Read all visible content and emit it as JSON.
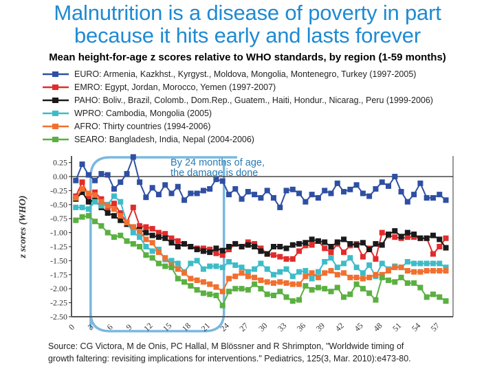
{
  "title_line1": "Malnutrition is a disease of poverty in part",
  "title_line2": "because it hits early and lasts forever",
  "subtitle": "Mean height-for-age z scores relative to WHO standards, by region (1-59 months)",
  "callout": {
    "line1": "By 24 months of age,",
    "line2": "the damage is done"
  },
  "source_line1": "Source: CG Victora, M de Onis, PC Hallal, M Blössner and R Shrimpton, \"Worldwide timing of",
  "source_line2": "growth faltering: revisiting implications for interventions.\" Pediatrics, 125(3, Mar. 2010):e473-80.",
  "chart_data": {
    "type": "line",
    "title": "Mean height-for-age z scores relative to WHO standards, by region (1-59 months)",
    "xlabel": "",
    "ylabel": "z scores (WHO)",
    "ylim": [
      -2.5,
      0.25
    ],
    "xlim": [
      0,
      59
    ],
    "x_ticks": [
      "0",
      "3",
      "6",
      "9",
      "12",
      "15",
      "18",
      "21",
      "24",
      "27",
      "30",
      "33",
      "36",
      "39",
      "42",
      "45",
      "48",
      "51",
      "54",
      "57"
    ],
    "y_ticks": [
      "0.25",
      "0.00",
      "-0.25",
      "-0.50",
      "-0.75",
      "-1.00",
      "-1.25",
      "-1.50",
      "-1.75",
      "-2.00",
      "-2.25",
      "-2.50"
    ],
    "highlight_region_months": [
      3,
      24
    ],
    "legend_position": "top",
    "x": [
      1,
      2,
      3,
      4,
      5,
      6,
      7,
      8,
      9,
      10,
      11,
      12,
      13,
      14,
      15,
      16,
      17,
      18,
      19,
      20,
      21,
      22,
      23,
      24,
      25,
      26,
      27,
      28,
      29,
      30,
      31,
      32,
      33,
      34,
      35,
      36,
      37,
      38,
      39,
      40,
      41,
      42,
      43,
      44,
      45,
      46,
      47,
      48,
      49,
      50,
      51,
      52,
      53,
      54,
      55,
      56,
      57,
      58,
      59
    ],
    "series": [
      {
        "name": "EURO: Armenia, Kazkhst., Kyrgyst., Moldova, Mongolia, Montenegro, Turkey (1997-2005)",
        "color": "#2e4fa3",
        "values": [
          -0.07,
          0.22,
          0.03,
          -0.07,
          0.05,
          0.03,
          -0.22,
          -0.1,
          0.05,
          0.35,
          -0.1,
          -0.37,
          -0.2,
          -0.32,
          -0.15,
          -0.3,
          -0.18,
          -0.42,
          -0.3,
          -0.3,
          -0.25,
          -0.22,
          -0.05,
          -0.08,
          -0.32,
          -0.22,
          -0.4,
          -0.27,
          -0.32,
          -0.38,
          -0.25,
          -0.38,
          -0.55,
          -0.25,
          -0.23,
          -0.3,
          -0.45,
          -0.32,
          -0.38,
          -0.25,
          -0.3,
          -0.12,
          -0.27,
          -0.23,
          -0.15,
          -0.3,
          -0.35,
          -0.22,
          -0.1,
          -0.17,
          0.0,
          -0.27,
          -0.45,
          -0.32,
          -0.12,
          -0.38,
          -0.38,
          -0.32,
          -0.42
        ]
      },
      {
        "name": "EMRO: Egypt, Jordan, Morocco, Yemen (1997-2007)",
        "color": "#e32b2b",
        "values": [
          -0.35,
          -0.1,
          -0.35,
          -0.28,
          -0.4,
          -0.55,
          -0.48,
          -0.65,
          -0.82,
          -0.55,
          -0.88,
          -0.9,
          -0.93,
          -1.0,
          -1.02,
          -1.1,
          -1.15,
          -1.2,
          -1.25,
          -1.28,
          -1.28,
          -1.3,
          -1.37,
          -1.4,
          -1.3,
          -1.2,
          -1.25,
          -1.17,
          -1.2,
          -1.28,
          -1.38,
          -1.4,
          -1.43,
          -1.47,
          -1.47,
          -1.33,
          -1.23,
          -1.22,
          -1.15,
          -1.28,
          -1.35,
          -1.2,
          -1.35,
          -1.23,
          -1.2,
          -1.43,
          -1.28,
          -1.47,
          -1.0,
          -1.05,
          -1.08,
          -1.1,
          -1.08,
          -1.08,
          -1.1,
          -1.1,
          -1.38,
          -1.25,
          -1.1
        ]
      },
      {
        "name": "PAHO: Boliv., Brazil, Colomb., Dom.Rep., Guatem., Haiti, Hondur., Nicarag., Peru (1999-2006)",
        "color": "#1a1a1a",
        "values": [
          -0.4,
          -0.28,
          -0.45,
          -0.42,
          -0.55,
          -0.65,
          -0.7,
          -0.78,
          -0.85,
          -0.9,
          -0.95,
          -1.0,
          -1.05,
          -1.08,
          -1.1,
          -1.18,
          -1.25,
          -1.2,
          -1.25,
          -1.3,
          -1.33,
          -1.35,
          -1.28,
          -1.32,
          -1.25,
          -1.2,
          -1.25,
          -1.22,
          -1.25,
          -1.33,
          -1.38,
          -1.25,
          -1.25,
          -1.28,
          -1.22,
          -1.2,
          -1.18,
          -1.12,
          -1.15,
          -1.17,
          -1.25,
          -1.17,
          -1.12,
          -1.2,
          -1.22,
          -1.18,
          -1.3,
          -1.2,
          -1.22,
          -1.03,
          -0.97,
          -1.07,
          -1.0,
          -1.03,
          -1.1,
          -1.1,
          -1.05,
          -1.12,
          -1.27
        ]
      },
      {
        "name": "WPRO: Cambodia, Mongolia (2005)",
        "color": "#3dbcc8",
        "values": [
          -0.55,
          -0.55,
          -0.58,
          -0.45,
          -0.52,
          -0.5,
          -0.35,
          -0.45,
          -0.82,
          -1.0,
          -1.08,
          -1.25,
          -1.33,
          -1.3,
          -1.48,
          -1.5,
          -1.55,
          -1.7,
          -1.55,
          -1.5,
          -1.65,
          -1.6,
          -1.6,
          -1.62,
          -1.52,
          -1.58,
          -1.62,
          -1.7,
          -1.65,
          -1.55,
          -1.65,
          -1.75,
          -1.7,
          -1.65,
          -1.78,
          -1.7,
          -1.68,
          -1.82,
          -1.7,
          -1.52,
          -1.45,
          -1.62,
          -1.55,
          -1.45,
          -1.62,
          -1.72,
          -1.58,
          -1.78,
          -1.55,
          -1.65,
          -1.6,
          -1.62,
          -1.52,
          -1.55,
          -1.55,
          -1.55,
          -1.55,
          -1.55,
          -1.62
        ]
      },
      {
        "name": "AFRO: Thirty countries (1994-2006)",
        "color": "#f07030",
        "values": [
          -0.38,
          -0.22,
          -0.3,
          -0.33,
          -0.45,
          -0.52,
          -0.58,
          -0.7,
          -0.82,
          -0.9,
          -0.98,
          -1.12,
          -1.18,
          -1.35,
          -1.45,
          -1.58,
          -1.65,
          -1.72,
          -1.82,
          -1.85,
          -1.88,
          -1.92,
          -1.97,
          -2.05,
          -1.82,
          -1.78,
          -1.72,
          -1.78,
          -1.8,
          -1.85,
          -1.88,
          -1.9,
          -1.88,
          -1.9,
          -1.92,
          -1.92,
          -1.78,
          -1.72,
          -1.8,
          -1.72,
          -1.68,
          -1.75,
          -1.72,
          -1.8,
          -1.8,
          -1.82,
          -1.8,
          -1.75,
          -1.75,
          -1.68,
          -1.62,
          -1.62,
          -1.68,
          -1.7,
          -1.7,
          -1.68,
          -1.68,
          -1.68,
          -1.68
        ]
      },
      {
        "name": "SEARO: Bangladesh, India, Nepal (2004-2006)",
        "color": "#5ab040",
        "values": [
          -0.78,
          -0.72,
          -0.7,
          -0.8,
          -0.88,
          -1.0,
          -1.08,
          -1.05,
          -1.15,
          -1.2,
          -1.25,
          -1.4,
          -1.45,
          -1.55,
          -1.6,
          -1.62,
          -1.82,
          -1.88,
          -1.95,
          -2.02,
          -2.08,
          -2.1,
          -2.12,
          -2.3,
          -2.05,
          -2.0,
          -2.0,
          -2.02,
          -1.92,
          -2.0,
          -2.1,
          -2.12,
          -2.05,
          -2.15,
          -2.22,
          -2.2,
          -1.95,
          -2.02,
          -1.98,
          -2.0,
          -2.05,
          -1.98,
          -2.15,
          -2.1,
          -1.92,
          -2.0,
          -2.08,
          -2.2,
          -1.8,
          -1.85,
          -1.88,
          -1.8,
          -1.9,
          -1.9,
          -1.98,
          -2.15,
          -2.1,
          -2.15,
          -2.22
        ]
      }
    ]
  }
}
